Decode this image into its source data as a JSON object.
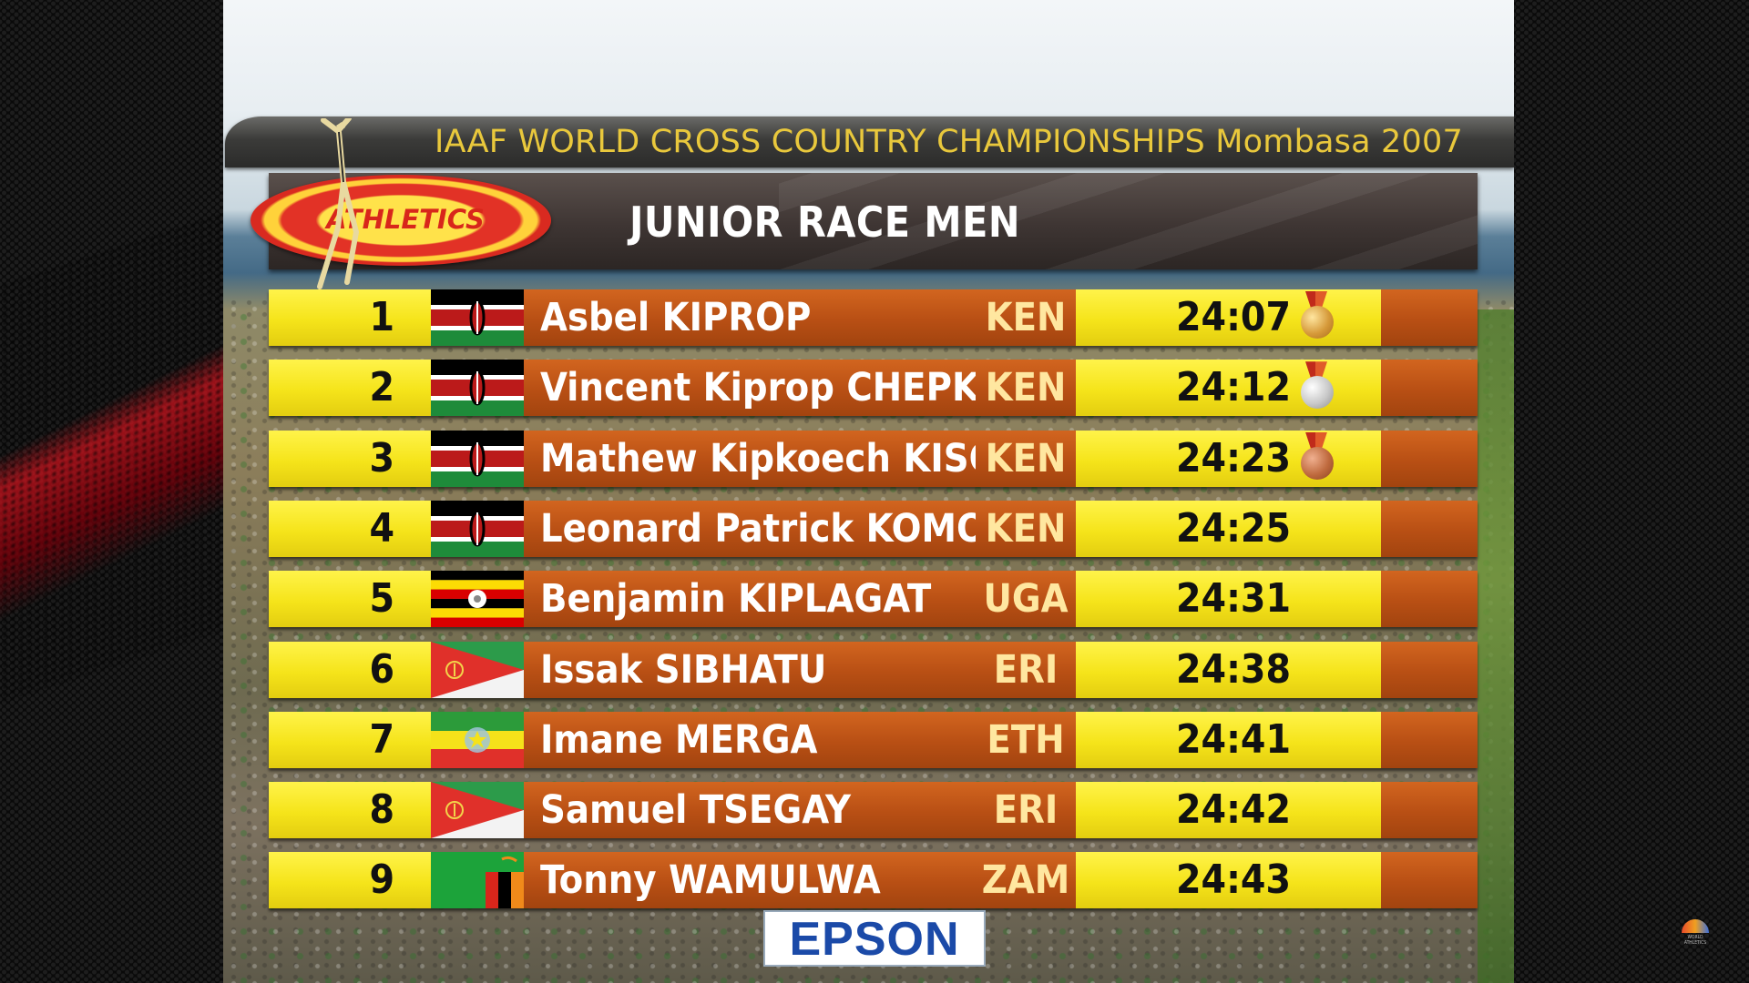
{
  "header": {
    "championship_title": "IAAF WORLD CROSS COUNTRY CHAMPIONSHIPS Mombasa 2007",
    "race_title": "JUNIOR RACE MEN",
    "logo_text": "ATHLETICS"
  },
  "results": [
    {
      "rank": "1",
      "name": "Asbel KIPROP",
      "nat": "KEN",
      "time": "24:07",
      "flag": "kenya-flag",
      "medal": "gold"
    },
    {
      "rank": "2",
      "name": "Vincent Kiprop CHEPKOK",
      "nat": "KEN",
      "time": "24:12",
      "flag": "kenya-flag",
      "medal": "silver"
    },
    {
      "rank": "3",
      "name": "Mathew Kipkoech KISORIO",
      "nat": "KEN",
      "time": "24:23",
      "flag": "kenya-flag",
      "medal": "bronze"
    },
    {
      "rank": "4",
      "name": "Leonard Patrick KOMON",
      "nat": "KEN",
      "time": "24:25",
      "flag": "kenya-flag",
      "medal": ""
    },
    {
      "rank": "5",
      "name": "Benjamin KIPLAGAT",
      "nat": "UGA",
      "time": "24:31",
      "flag": "uganda-flag",
      "medal": ""
    },
    {
      "rank": "6",
      "name": "Issak SIBHATU",
      "nat": "ERI",
      "time": "24:38",
      "flag": "eritrea-flag",
      "medal": ""
    },
    {
      "rank": "7",
      "name": "Imane MERGA",
      "nat": "ETH",
      "time": "24:41",
      "flag": "ethiopia-flag",
      "medal": ""
    },
    {
      "rank": "8",
      "name": "Samuel TSEGAY",
      "nat": "ERI",
      "time": "24:42",
      "flag": "eritrea-flag",
      "medal": ""
    },
    {
      "rank": "9",
      "name": "Tonny WAMULWA",
      "nat": "ZAM",
      "time": "24:43",
      "flag": "zambia-flag",
      "medal": ""
    }
  ],
  "sponsor": "EPSON",
  "watermark": "WORLD ATHLETICS"
}
